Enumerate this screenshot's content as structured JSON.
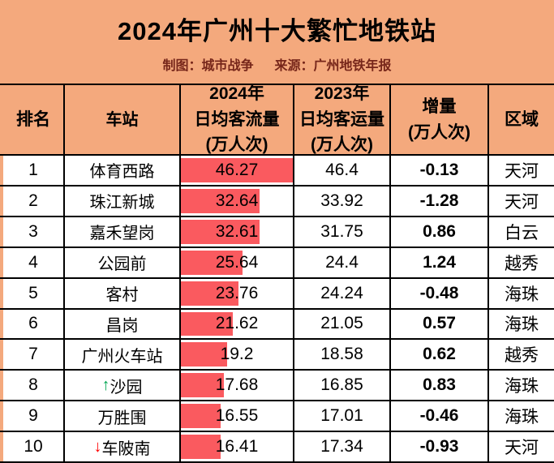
{
  "header": {
    "title": "2024年广州十大繁忙地铁站",
    "credit": "制图：城市战争",
    "source": "来源：广州地铁年报"
  },
  "colors": {
    "background_orange": "#F4A97D",
    "data_bar_red": "#FA5A5F",
    "subtitle_maroon": "#76261A",
    "up_arrow_green": "#00A651",
    "down_arrow_red": "#FF0000",
    "grid_black": "#000000"
  },
  "chart_data": {
    "type": "table",
    "title": "2024年广州十大繁忙地铁站",
    "columns": [
      {
        "label": "排名"
      },
      {
        "label": "车站"
      },
      {
        "label": "2024年\n日均客流量\n(万人次)"
      },
      {
        "label": "2023年\n日均客运量\n(万人次)"
      },
      {
        "label": "增量\n(万人次)"
      },
      {
        "label": "区域"
      }
    ],
    "bar_column": "2024年日均客流量",
    "bar_max_value": 46.27,
    "rows": [
      {
        "rank": "1",
        "arrow": "",
        "station": "体育西路",
        "flow_2024": "46.27",
        "flow_2023": "46.4",
        "delta": "-0.13",
        "district": "天河",
        "bar_pct": 100
      },
      {
        "rank": "2",
        "arrow": "",
        "station": "珠江新城",
        "flow_2024": "32.64",
        "flow_2023": "33.92",
        "delta": "-1.28",
        "district": "天河",
        "bar_pct": 70.5
      },
      {
        "rank": "3",
        "arrow": "",
        "station": "嘉禾望岗",
        "flow_2024": "32.61",
        "flow_2023": "31.75",
        "delta": "0.86",
        "district": "白云",
        "bar_pct": 70.5
      },
      {
        "rank": "4",
        "arrow": "",
        "station": "公园前",
        "flow_2024": "25.64",
        "flow_2023": "24.4",
        "delta": "1.24",
        "district": "越秀",
        "bar_pct": 55.4
      },
      {
        "rank": "5",
        "arrow": "",
        "station": "客村",
        "flow_2024": "23.76",
        "flow_2023": "24.24",
        "delta": "-0.48",
        "district": "海珠",
        "bar_pct": 51.4
      },
      {
        "rank": "6",
        "arrow": "",
        "station": "昌岗",
        "flow_2024": "21.62",
        "flow_2023": "21.05",
        "delta": "0.57",
        "district": "海珠",
        "bar_pct": 46.7
      },
      {
        "rank": "7",
        "arrow": "",
        "station": "广州火车站",
        "flow_2024": "19.2",
        "flow_2023": "18.58",
        "delta": "0.62",
        "district": "越秀",
        "bar_pct": 41.5
      },
      {
        "rank": "8",
        "arrow": "up",
        "station": "沙园",
        "flow_2024": "17.68",
        "flow_2023": "16.85",
        "delta": "0.83",
        "district": "海珠",
        "bar_pct": 38.2
      },
      {
        "rank": "9",
        "arrow": "",
        "station": "万胜围",
        "flow_2024": "16.55",
        "flow_2023": "17.01",
        "delta": "-0.46",
        "district": "海珠",
        "bar_pct": 35.8
      },
      {
        "rank": "10",
        "arrow": "down",
        "station": "车陂南",
        "flow_2024": "16.41",
        "flow_2023": "17.34",
        "delta": "-0.93",
        "district": "天河",
        "bar_pct": 35.5
      }
    ]
  },
  "icons": {
    "up_arrow": "↑",
    "down_arrow": "↓"
  }
}
